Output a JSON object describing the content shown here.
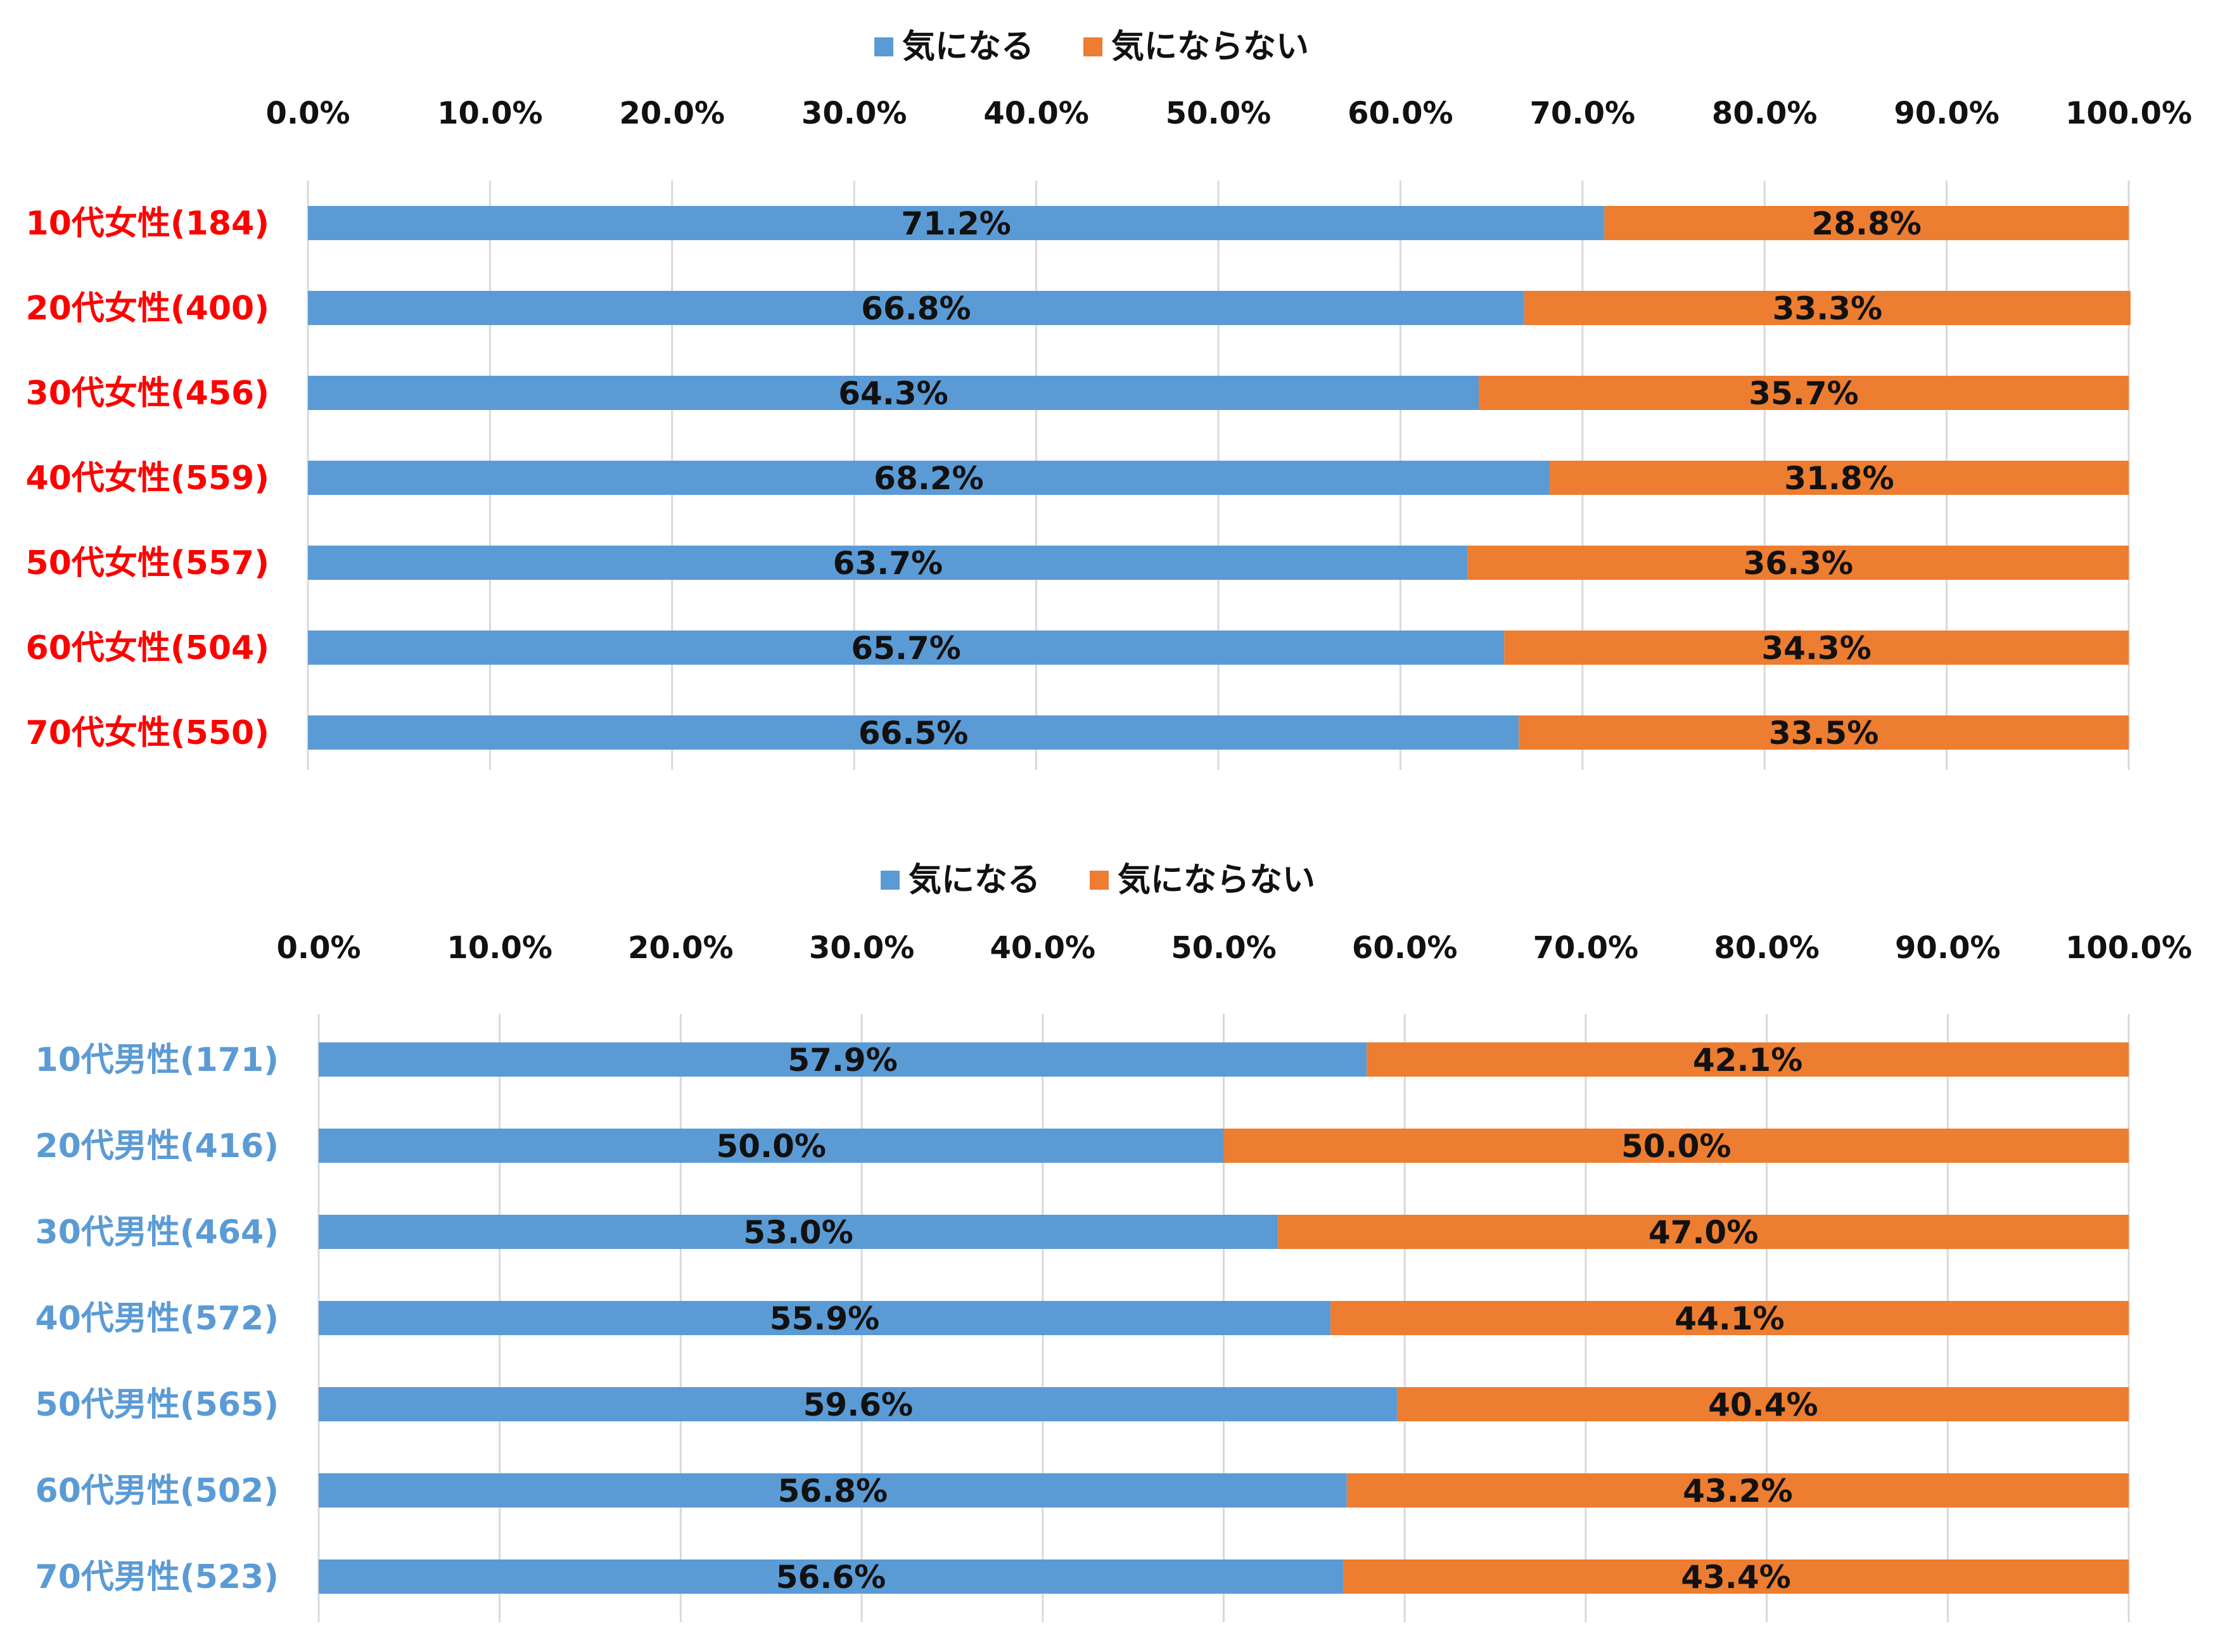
{
  "colors": {
    "series_1": "#5B9BD5",
    "series_2": "#ED7D31",
    "female_label": "#FF0000",
    "male_label": "#5B9BD5",
    "grid": "#D9D9D9"
  },
  "chart_data": [
    {
      "type": "bar",
      "orientation": "horizontal",
      "stacked": true,
      "categories": [
        "10代女性(184)",
        "20代女性(400)",
        "30代女性(456)",
        "40代女性(559)",
        "50代女性(557)",
        "60代女性(504)",
        "70代女性(550)"
      ],
      "series": [
        {
          "name": "気になる",
          "values": [
            71.2,
            66.8,
            64.3,
            68.2,
            63.7,
            65.7,
            66.5
          ],
          "labels": [
            "71.2%",
            "66.8%",
            "64.3%",
            "68.2%",
            "63.7%",
            "65.7%",
            "66.5%"
          ]
        },
        {
          "name": "気にならない",
          "values": [
            28.8,
            33.3,
            35.7,
            31.8,
            36.3,
            34.3,
            33.5
          ],
          "labels": [
            "28.8%",
            "33.3%",
            "35.7%",
            "31.8%",
            "36.3%",
            "34.3%",
            "33.5%"
          ]
        }
      ],
      "ticks": [
        "0.0%",
        "10.0%",
        "20.0%",
        "30.0%",
        "40.0%",
        "50.0%",
        "60.0%",
        "70.0%",
        "80.0%",
        "90.0%",
        "100.0%"
      ],
      "xlim": [
        0,
        100
      ],
      "axis_position": "top",
      "grid": true,
      "legend": "top-center"
    },
    {
      "type": "bar",
      "orientation": "horizontal",
      "stacked": true,
      "categories": [
        "10代男性(171)",
        "20代男性(416)",
        "30代男性(464)",
        "40代男性(572)",
        "50代男性(565)",
        "60代男性(502)",
        "70代男性(523)"
      ],
      "series": [
        {
          "name": "気になる",
          "values": [
            57.9,
            50.0,
            53.0,
            55.9,
            59.6,
            56.8,
            56.6
          ],
          "labels": [
            "57.9%",
            "50.0%",
            "53.0%",
            "55.9%",
            "59.6%",
            "56.8%",
            "56.6%"
          ]
        },
        {
          "name": "気にならない",
          "values": [
            42.1,
            50.0,
            47.0,
            44.1,
            40.4,
            43.2,
            43.4
          ],
          "labels": [
            "42.1%",
            "50.0%",
            "47.0%",
            "44.1%",
            "40.4%",
            "43.2%",
            "43.4%"
          ]
        }
      ],
      "ticks": [
        "0.0%",
        "10.0%",
        "20.0%",
        "30.0%",
        "40.0%",
        "50.0%",
        "60.0%",
        "70.0%",
        "80.0%",
        "90.0%",
        "100.0%"
      ],
      "xlim": [
        0,
        100
      ],
      "axis_position": "top",
      "grid": true,
      "legend": "top-center"
    }
  ]
}
